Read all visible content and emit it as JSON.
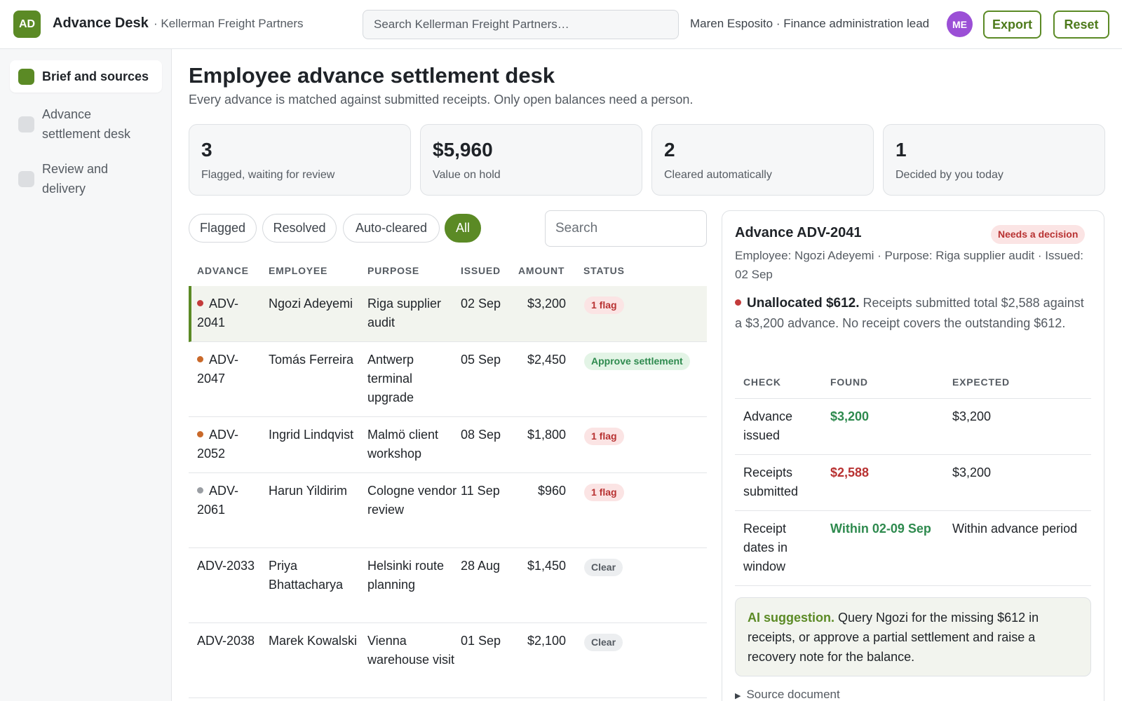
{
  "app": {
    "logo_initials": "AD",
    "title": "Advance Desk",
    "org": "· Kellerman Freight Partners",
    "search_placeholder": "Search Kellerman Freight Partners…",
    "user_label": "Maren Esposito · Finance administration lead",
    "user_initials": "ME",
    "export_label": "Export",
    "reset_label": "Reset"
  },
  "sidebar": {
    "items": [
      {
        "label": "Brief and sources",
        "active": true
      },
      {
        "label": "Advance settlement desk",
        "active": false
      },
      {
        "label": "Review and delivery",
        "active": false
      }
    ]
  },
  "page": {
    "title": "Employee advance settlement desk",
    "subtitle": "Every advance is matched against submitted receipts. Only open balances need a person."
  },
  "stats": [
    {
      "value": "3",
      "label": "Flagged, waiting for review"
    },
    {
      "value": "$5,960",
      "label": "Value on hold"
    },
    {
      "value": "2",
      "label": "Cleared automatically"
    },
    {
      "value": "1",
      "label": "Decided by you today"
    }
  ],
  "filters": {
    "pills": [
      "Flagged",
      "Resolved",
      "Auto-cleared",
      "All"
    ],
    "active": "All",
    "search_placeholder": "Search"
  },
  "table": {
    "headers": [
      "ADVANCE",
      "EMPLOYEE",
      "PURPOSE",
      "ISSUED",
      "AMOUNT",
      "STATUS"
    ],
    "rows": [
      {
        "advance": "ADV-2041",
        "employee": "Ngozi Adeyemi",
        "purpose": "Riga supplier audit",
        "issued": "02 Sep",
        "amount": "$3,200",
        "status": "1 flag",
        "status_type": "flag",
        "dot": "#c33b3b",
        "selected": true
      },
      {
        "advance": "ADV-2047",
        "employee": "Tomás Ferreira",
        "purpose": "Antwerp terminal upgrade",
        "issued": "05 Sep",
        "amount": "$2,450",
        "status": "Approve settlement",
        "status_type": "approve",
        "dot": "#c9692a"
      },
      {
        "advance": "ADV-2052",
        "employee": "Ingrid Lindqvist",
        "purpose": "Malmö client workshop",
        "issued": "08 Sep",
        "amount": "$1,800",
        "status": "1 flag",
        "status_type": "flag",
        "dot": "#c9692a"
      },
      {
        "advance": "ADV-2061",
        "employee": "Harun Yildirim",
        "purpose": "Cologne vendor review",
        "issued": "11 Sep",
        "amount": "$960",
        "status": "1 flag",
        "status_type": "flag",
        "dot": "#9a9ea3"
      },
      {
        "advance": "ADV-2033",
        "employee": "Priya Bhattacharya",
        "purpose": "Helsinki route planning",
        "issued": "28 Aug",
        "amount": "$1,450",
        "status": "Clear",
        "status_type": "clear",
        "dot": null
      },
      {
        "advance": "ADV-2038",
        "employee": "Marek Kowalski",
        "purpose": "Vienna warehouse visit",
        "issued": "01 Sep",
        "amount": "$2,100",
        "status": "Clear",
        "status_type": "clear",
        "dot": null
      }
    ]
  },
  "detail": {
    "title": "Advance ADV-2041",
    "badge": "Needs a decision",
    "meta": "Employee: Ngozi Adeyemi · Purpose: Riga supplier audit · Issued: 02 Sep",
    "flag_head": "Unallocated $612.",
    "flag_text": " Receipts submitted total $2,588 against a $3,200 advance. No receipt covers the outstanding $612.",
    "check_headers": [
      "CHECK",
      "FOUND",
      "EXPECTED"
    ],
    "checks": [
      {
        "check": "Advance issued",
        "found": "$3,200",
        "expected": "$3,200",
        "ok": true
      },
      {
        "check": "Receipts submitted",
        "found": "$2,588",
        "expected": "$3,200",
        "ok": false
      },
      {
        "check": "Receipt dates in window",
        "found": "Within 02-09 Sep",
        "expected": "Within advance period",
        "ok": true
      }
    ],
    "ai_lead": "AI suggestion.",
    "ai_text": " Query Ngozi for the missing $612 in receipts, or approve a partial settlement and raise a recovery note for the balance.",
    "source_label": "Source document"
  },
  "colors": {
    "accent": "#5b8a25",
    "ok": "#2e8a4e",
    "bad": "#b83232",
    "flag_bg": "#fbe4e4",
    "approve_bg": "#e3f4e6",
    "clear_bg": "#eceef0"
  }
}
